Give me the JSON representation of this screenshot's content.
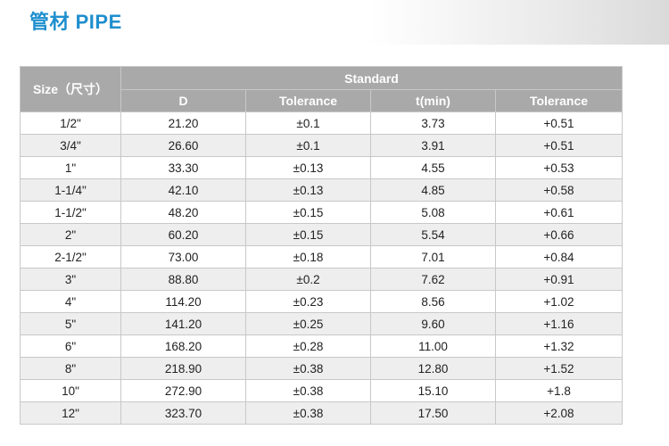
{
  "page": {
    "title": "管材 PIPE"
  },
  "table": {
    "size_header": "Size（尺寸）",
    "standard_header": "Standard",
    "sub_headers": [
      "D",
      "Tolerance",
      "t(min)",
      "Tolerance"
    ],
    "rows": [
      [
        "1/2\"",
        "21.20",
        "±0.1",
        "3.73",
        "+0.51"
      ],
      [
        "3/4\"",
        "26.60",
        "±0.1",
        "3.91",
        "+0.51"
      ],
      [
        "1\"",
        "33.30",
        "±0.13",
        "4.55",
        "+0.53"
      ],
      [
        "1-1/4\"",
        "42.10",
        "±0.13",
        "4.85",
        "+0.58"
      ],
      [
        "1-1/2\"",
        "48.20",
        "±0.15",
        "5.08",
        "+0.61"
      ],
      [
        "2\"",
        "60.20",
        "±0.15",
        "5.54",
        "+0.66"
      ],
      [
        "2-1/2\"",
        "73.00",
        "±0.18",
        "7.01",
        "+0.84"
      ],
      [
        "3\"",
        "88.80",
        "±0.2",
        "7.62",
        "+0.91"
      ],
      [
        "4\"",
        "114.20",
        "±0.23",
        "8.56",
        "+1.02"
      ],
      [
        "5\"",
        "141.20",
        "±0.25",
        "9.60",
        "+1.16"
      ],
      [
        "6\"",
        "168.20",
        "±0.28",
        "11.00",
        "+1.32"
      ],
      [
        "8\"",
        "218.90",
        "±0.38",
        "12.80",
        "+1.52"
      ],
      [
        "10\"",
        "272.90",
        "±0.38",
        "15.10",
        "+1.8"
      ],
      [
        "12\"",
        "323.70",
        "±0.38",
        "17.50",
        "+2.08"
      ]
    ]
  }
}
